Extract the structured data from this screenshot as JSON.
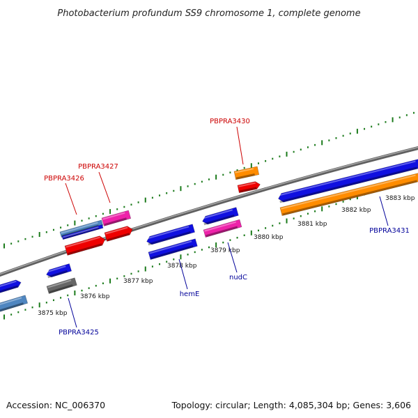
{
  "title": "Photobacterium profundum SS9 chromosome 1, complete genome",
  "footer": {
    "accession": "Accession: NC_006370",
    "summary": "Topology: circular; Length: 4,085,304 bp; Genes: 3,606"
  },
  "scale": {
    "unit": "kbp",
    "labels": [
      {
        "kbp": 3875,
        "text": "3875 kbp"
      },
      {
        "kbp": 3876,
        "text": "3876 kbp"
      },
      {
        "kbp": 3877,
        "text": "3877 kbp"
      },
      {
        "kbp": 3878,
        "text": "3878 kbp"
      },
      {
        "kbp": 3879,
        "text": "3879 kbp"
      },
      {
        "kbp": 3880,
        "text": "3880 kbp"
      },
      {
        "kbp": 3881,
        "text": "3881 kbp"
      },
      {
        "kbp": 3882,
        "text": "3882 kbp"
      },
      {
        "kbp": 3883,
        "text": "3883 kbp"
      }
    ]
  },
  "gene_labels": [
    {
      "name": "PBPRA3430",
      "color": "#cc0000"
    },
    {
      "name": "PBPRA3427",
      "color": "#cc0000"
    },
    {
      "name": "PBPRA3426",
      "color": "#cc0000"
    },
    {
      "name": "PBPRA3431",
      "color": "#000099"
    },
    {
      "name": "nudC",
      "color": "#000099"
    },
    {
      "name": "hemE",
      "color": "#000099"
    },
    {
      "name": "PBPRA3425",
      "color": "#000099"
    }
  ],
  "colors": {
    "backbone": "#808080",
    "tick": "#1a7a1a",
    "blue": "#1010e0",
    "red": "#ee0000",
    "pink": "#ee22aa",
    "orange": "#ff8c00",
    "steel": "#4f86c0",
    "gray": "#666666"
  }
}
